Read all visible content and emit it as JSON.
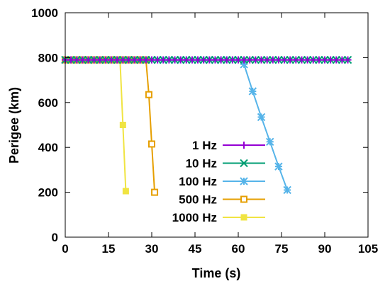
{
  "chart_data": {
    "type": "line",
    "title": "",
    "xlabel": "Time (s)",
    "ylabel": "Perigee (km)",
    "xlim": [
      0,
      105
    ],
    "ylim": [
      0,
      1000
    ],
    "xticks": [
      0,
      15,
      30,
      45,
      60,
      75,
      90,
      105
    ],
    "yticks": [
      0,
      200,
      400,
      600,
      800,
      1000
    ],
    "grid": false,
    "legend_position": "center",
    "series": [
      {
        "name": "1 Hz",
        "color": "#9400d3",
        "marker": "plus",
        "x": [
          0,
          2,
          4,
          6,
          8,
          10,
          12,
          14,
          16,
          18,
          20,
          22,
          24,
          26,
          28,
          30,
          32,
          34,
          36,
          38,
          40,
          42,
          44,
          46,
          48,
          50,
          52,
          54,
          56,
          58,
          60,
          62,
          64,
          66,
          68,
          70,
          72,
          74,
          76,
          78,
          80,
          82,
          84,
          86,
          88,
          90,
          92,
          94,
          96,
          98
        ],
        "y": [
          790,
          790,
          790,
          790,
          790,
          790,
          790,
          790,
          790,
          790,
          790,
          790,
          790,
          790,
          790,
          790,
          790,
          790,
          790,
          790,
          790,
          790,
          790,
          790,
          790,
          790,
          790,
          790,
          790,
          790,
          790,
          790,
          790,
          790,
          790,
          790,
          790,
          790,
          790,
          790,
          790,
          790,
          790,
          790,
          790,
          790,
          790,
          790,
          790,
          790
        ]
      },
      {
        "name": "10 Hz",
        "color": "#009e73",
        "marker": "cross",
        "x": [
          0,
          2,
          4,
          6,
          8,
          10,
          12,
          14,
          16,
          18,
          20,
          22,
          24,
          26,
          28,
          30,
          32,
          34,
          36,
          38,
          40,
          42,
          44,
          46,
          48,
          50,
          52,
          54,
          56,
          58,
          60,
          62,
          64,
          66,
          68,
          70,
          72,
          74,
          76,
          78,
          80,
          82,
          84,
          86,
          88,
          90,
          92,
          94,
          96,
          98
        ],
        "y": [
          790,
          790,
          790,
          790,
          790,
          790,
          790,
          790,
          790,
          790,
          790,
          790,
          790,
          790,
          790,
          790,
          790,
          790,
          790,
          790,
          790,
          790,
          790,
          790,
          790,
          790,
          790,
          790,
          790,
          790,
          790,
          790,
          790,
          790,
          790,
          790,
          790,
          790,
          790,
          790,
          790,
          790,
          790,
          790,
          790,
          790,
          790,
          790,
          790,
          790
        ]
      },
      {
        "name": "100 Hz",
        "color": "#56b4e9",
        "marker": "star",
        "x": [
          0,
          2,
          4,
          6,
          8,
          10,
          12,
          14,
          16,
          18,
          20,
          22,
          24,
          26,
          28,
          30,
          32,
          34,
          36,
          38,
          40,
          42,
          44,
          46,
          48,
          50,
          52,
          54,
          56,
          58,
          60,
          62,
          65,
          68,
          71,
          74,
          77
        ],
        "y": [
          790,
          790,
          790,
          790,
          790,
          790,
          790,
          790,
          790,
          790,
          790,
          790,
          790,
          790,
          790,
          790,
          790,
          790,
          790,
          790,
          790,
          790,
          790,
          790,
          790,
          790,
          790,
          790,
          790,
          790,
          790,
          770,
          650,
          535,
          425,
          315,
          210
        ]
      },
      {
        "name": "500 Hz",
        "color": "#e69f00",
        "marker": "open-square",
        "x": [
          0,
          1,
          2,
          3,
          4,
          5,
          6,
          7,
          8,
          9,
          10,
          11,
          12,
          13,
          14,
          15,
          16,
          17,
          18,
          19,
          20,
          21,
          22,
          23,
          24,
          25,
          26,
          27,
          28,
          29,
          30,
          31
        ],
        "y": [
          790,
          790,
          790,
          790,
          790,
          790,
          790,
          790,
          790,
          790,
          790,
          790,
          790,
          790,
          790,
          790,
          790,
          790,
          790,
          790,
          790,
          790,
          790,
          790,
          790,
          790,
          790,
          790,
          790,
          635,
          415,
          200
        ]
      },
      {
        "name": "1000 Hz",
        "color": "#f0e442",
        "marker": "filled-square",
        "x": [
          0,
          1,
          2,
          3,
          4,
          5,
          6,
          7,
          8,
          9,
          10,
          11,
          12,
          13,
          14,
          15,
          16,
          17,
          18,
          19,
          20,
          21
        ],
        "y": [
          790,
          790,
          790,
          790,
          790,
          790,
          790,
          790,
          790,
          790,
          790,
          790,
          790,
          790,
          790,
          790,
          790,
          790,
          790,
          790,
          500,
          205
        ]
      }
    ]
  }
}
